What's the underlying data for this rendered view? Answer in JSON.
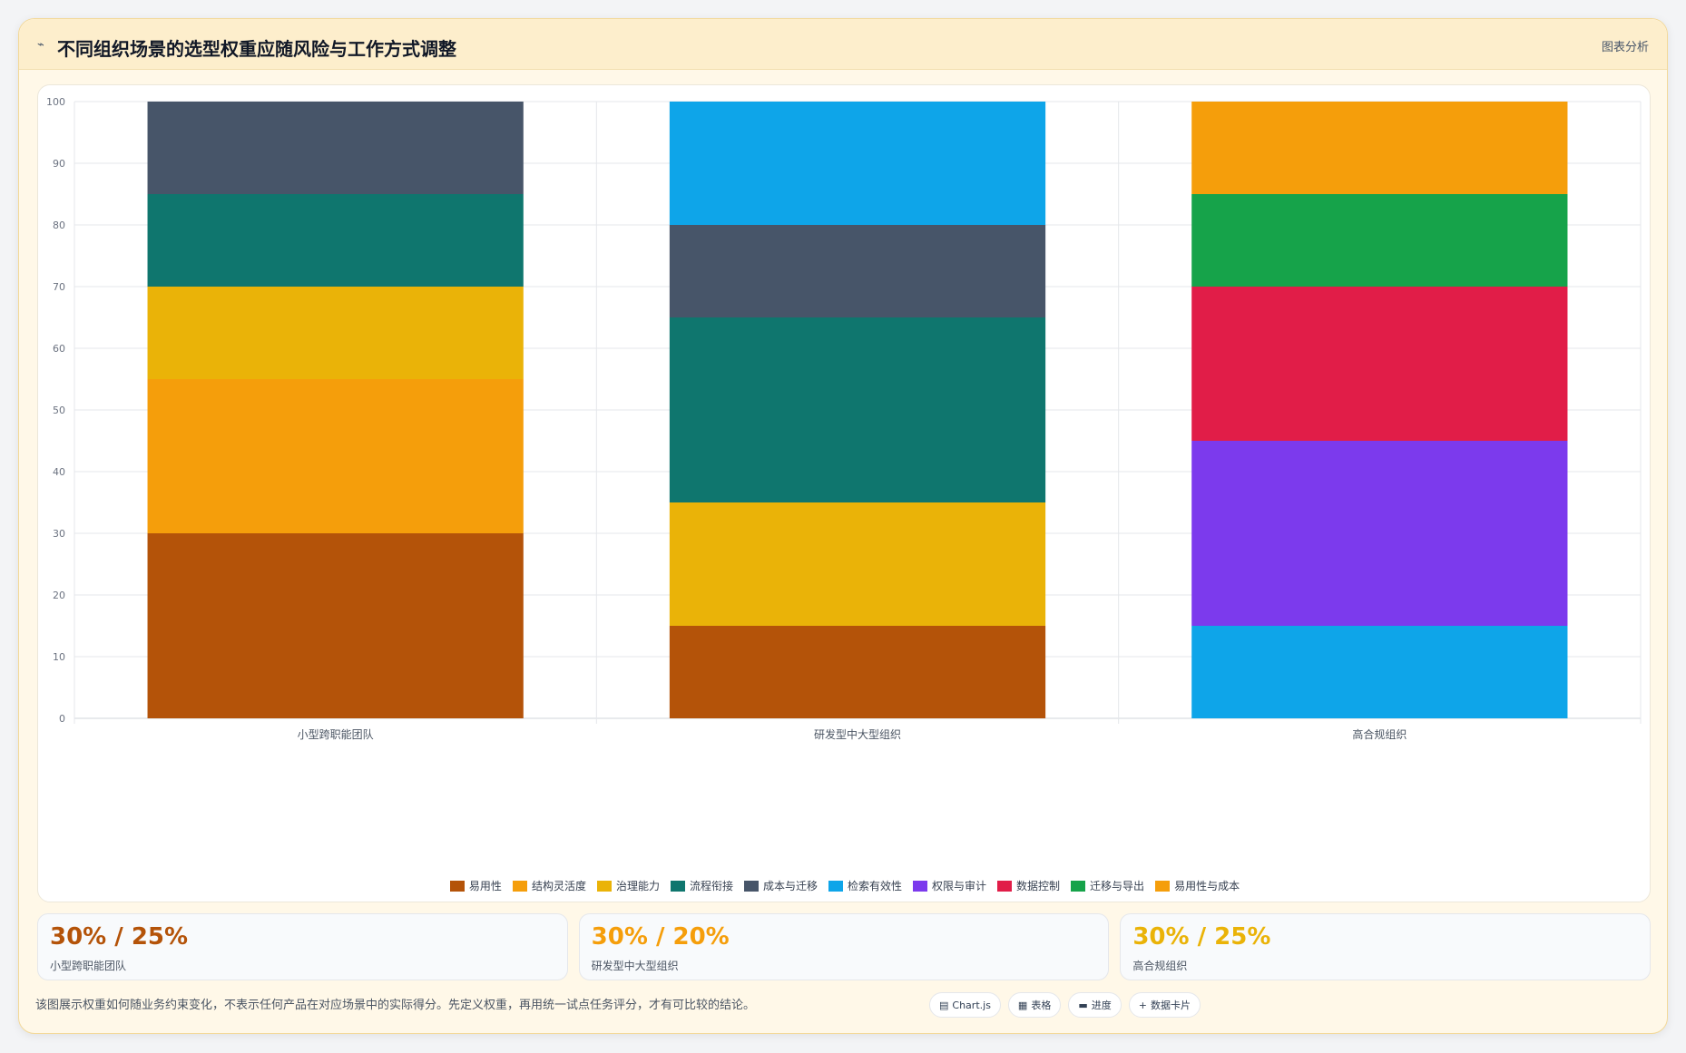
{
  "header": {
    "icon": "trend-icon",
    "title": "不同组织场景的选型权重应随风险与工作方式调整",
    "right_label": "图表分析"
  },
  "chart_data": {
    "type": "bar",
    "stacked": true,
    "categories": [
      "小型跨职能团队",
      "研发型中大型组织",
      "高合规组织"
    ],
    "ylim": [
      0,
      100
    ],
    "yticks": [
      0,
      10,
      20,
      30,
      40,
      50,
      60,
      70,
      80,
      90,
      100
    ],
    "grid": true,
    "legend_position": "bottom",
    "series": [
      {
        "name": "易用性",
        "color": "#b45309",
        "values": [
          30,
          15,
          0
        ]
      },
      {
        "name": "结构灵活度",
        "color": "#f59e0b",
        "values": [
          25,
          0,
          0
        ]
      },
      {
        "name": "治理能力",
        "color": "#eab308",
        "values": [
          15,
          20,
          0
        ]
      },
      {
        "name": "流程衔接",
        "color": "#0f766e",
        "values": [
          15,
          30,
          0
        ]
      },
      {
        "name": "成本与迁移",
        "color": "#475569",
        "values": [
          15,
          15,
          0
        ]
      },
      {
        "name": "检索有效性",
        "color": "#0ea5e9",
        "values": [
          0,
          20,
          15
        ]
      },
      {
        "name": "权限与审计",
        "color": "#7c3aed",
        "values": [
          0,
          0,
          30
        ]
      },
      {
        "name": "数据控制",
        "color": "#e11d48",
        "values": [
          0,
          0,
          25
        ]
      },
      {
        "name": "迁移与导出",
        "color": "#16a34a",
        "values": [
          0,
          0,
          15
        ]
      },
      {
        "name": "易用性与成本",
        "color": "#f59e0b",
        "values": [
          0,
          0,
          15
        ]
      }
    ]
  },
  "kpis": [
    {
      "value": "30% / 25%",
      "label": "小型跨职能团队",
      "color": "#b45309"
    },
    {
      "value": "30% / 20%",
      "label": "研发型中大型组织",
      "color": "#f59e0b"
    },
    {
      "value": "30% / 25%",
      "label": "高合规组织",
      "color": "#eab308"
    }
  ],
  "footnote": "该图展示权重如何随业务约束变化，不表示任何产品在对应场景中的实际得分。先定义权重，再用统一试点任务评分，才有可比较的结论。",
  "pills": [
    {
      "icon": "chart-icon",
      "glyph": "▤",
      "label": "Chart.js"
    },
    {
      "icon": "table-icon",
      "glyph": "▦",
      "label": "表格"
    },
    {
      "icon": "progress-icon",
      "glyph": "▬",
      "label": "进度"
    },
    {
      "icon": "plus-icon",
      "glyph": "+",
      "label": "数据卡片"
    }
  ]
}
